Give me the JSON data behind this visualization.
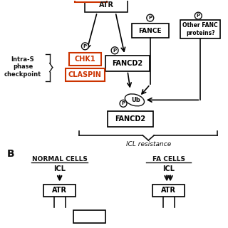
{
  "red_color": "#cc3300",
  "label_B": "B",
  "normal_cells_label": "NORMAL CELLS",
  "fa_cells_label": "FA CELLS",
  "icl_label": "ICL",
  "atr_label": "ATR",
  "fancd2_top_label": "FANCD2",
  "fancd2_bot_label": "FANCD2",
  "fance_label": "FANCE",
  "other_fanc_label": "Other FANC\nproteins?",
  "chk1_label": "CHK1",
  "claspin_label": "CLASPIN",
  "intra_s_label": "Intra-S\nphase\ncheckpoint",
  "icl_resistance_label": "ICL resistance",
  "ub_label": "Ub",
  "p_label": "P"
}
